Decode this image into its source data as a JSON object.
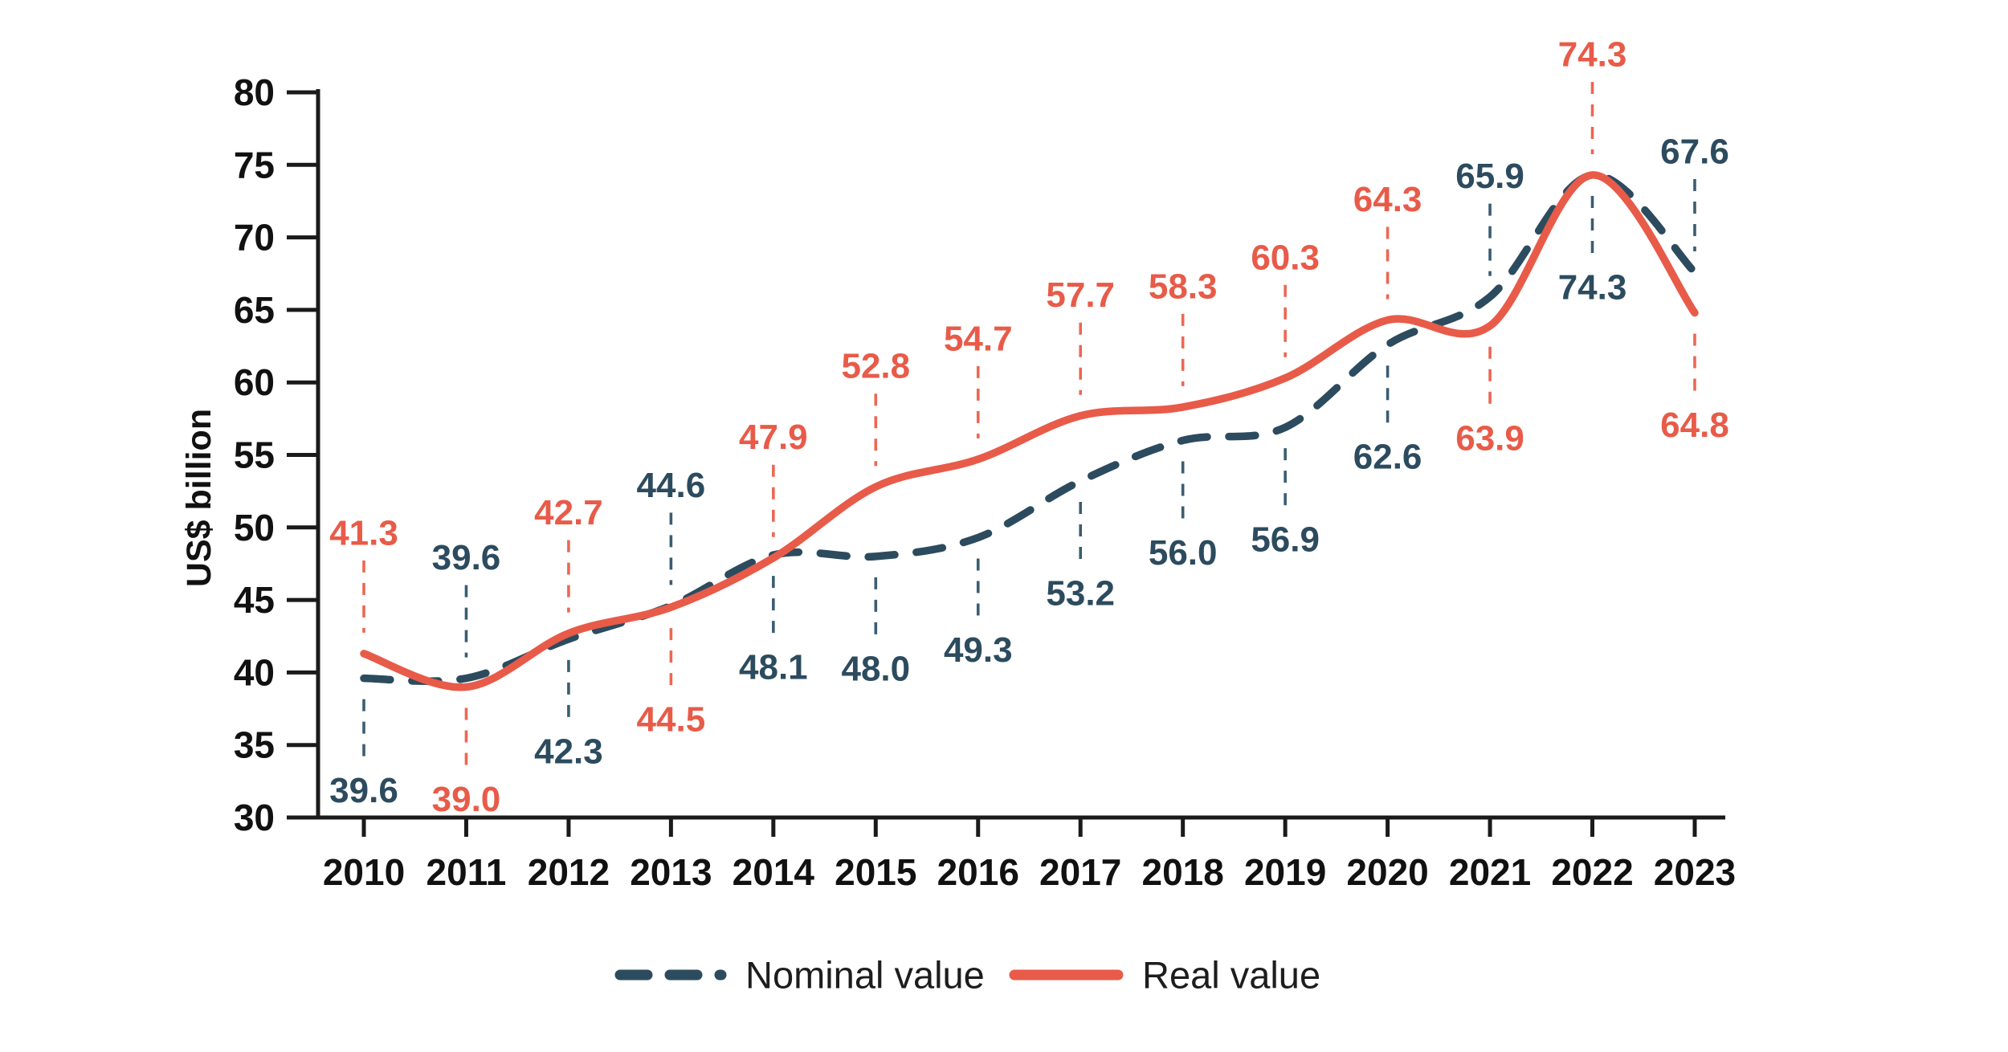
{
  "chart": {
    "ylabel": "US$ billion",
    "legend": {
      "nominal_label": "Nominal value",
      "real_label": "Real value"
    }
  },
  "colors": {
    "nominal": "#2C4B5E",
    "real": "#E85B49",
    "leader_nominal": "#3A5D72",
    "leader_real": "#EC6753",
    "axis": "#1A1A1A",
    "tick_text": "#111111",
    "legend_text": "#1D1D1D"
  },
  "chart_data": {
    "type": "line",
    "x": [
      2010,
      2011,
      2012,
      2013,
      2014,
      2015,
      2016,
      2017,
      2018,
      2019,
      2020,
      2021,
      2022,
      2023
    ],
    "series": [
      {
        "id": "nominal",
        "name": "Nominal value",
        "style": "dashed",
        "color": "#2C4B5E",
        "values": [
          39.6,
          39.6,
          42.3,
          44.6,
          48.1,
          48.0,
          49.3,
          53.2,
          56.0,
          56.9,
          62.6,
          65.9,
          74.3,
          67.6
        ]
      },
      {
        "id": "real",
        "name": "Real value",
        "style": "solid",
        "color": "#E85B49",
        "values": [
          41.3,
          39.0,
          42.7,
          44.5,
          47.9,
          52.8,
          54.7,
          57.7,
          58.3,
          60.3,
          64.3,
          63.9,
          74.3,
          64.8
        ]
      }
    ],
    "title": "",
    "xlabel": "",
    "ylabel": "US$ billion",
    "ylim": [
      30,
      80
    ],
    "ytick_step": 5,
    "yticks": [
      30,
      35,
      40,
      45,
      50,
      55,
      60,
      65,
      70,
      75,
      80
    ],
    "grid": false,
    "legend_position": "bottom-center",
    "label_above_series": [
      "real",
      "nominal",
      "real",
      "nominal",
      "real",
      "real",
      "real",
      "real",
      "real",
      "real",
      "real",
      "nominal",
      "real",
      "nominal"
    ],
    "data_label_format": "one-decimal"
  }
}
